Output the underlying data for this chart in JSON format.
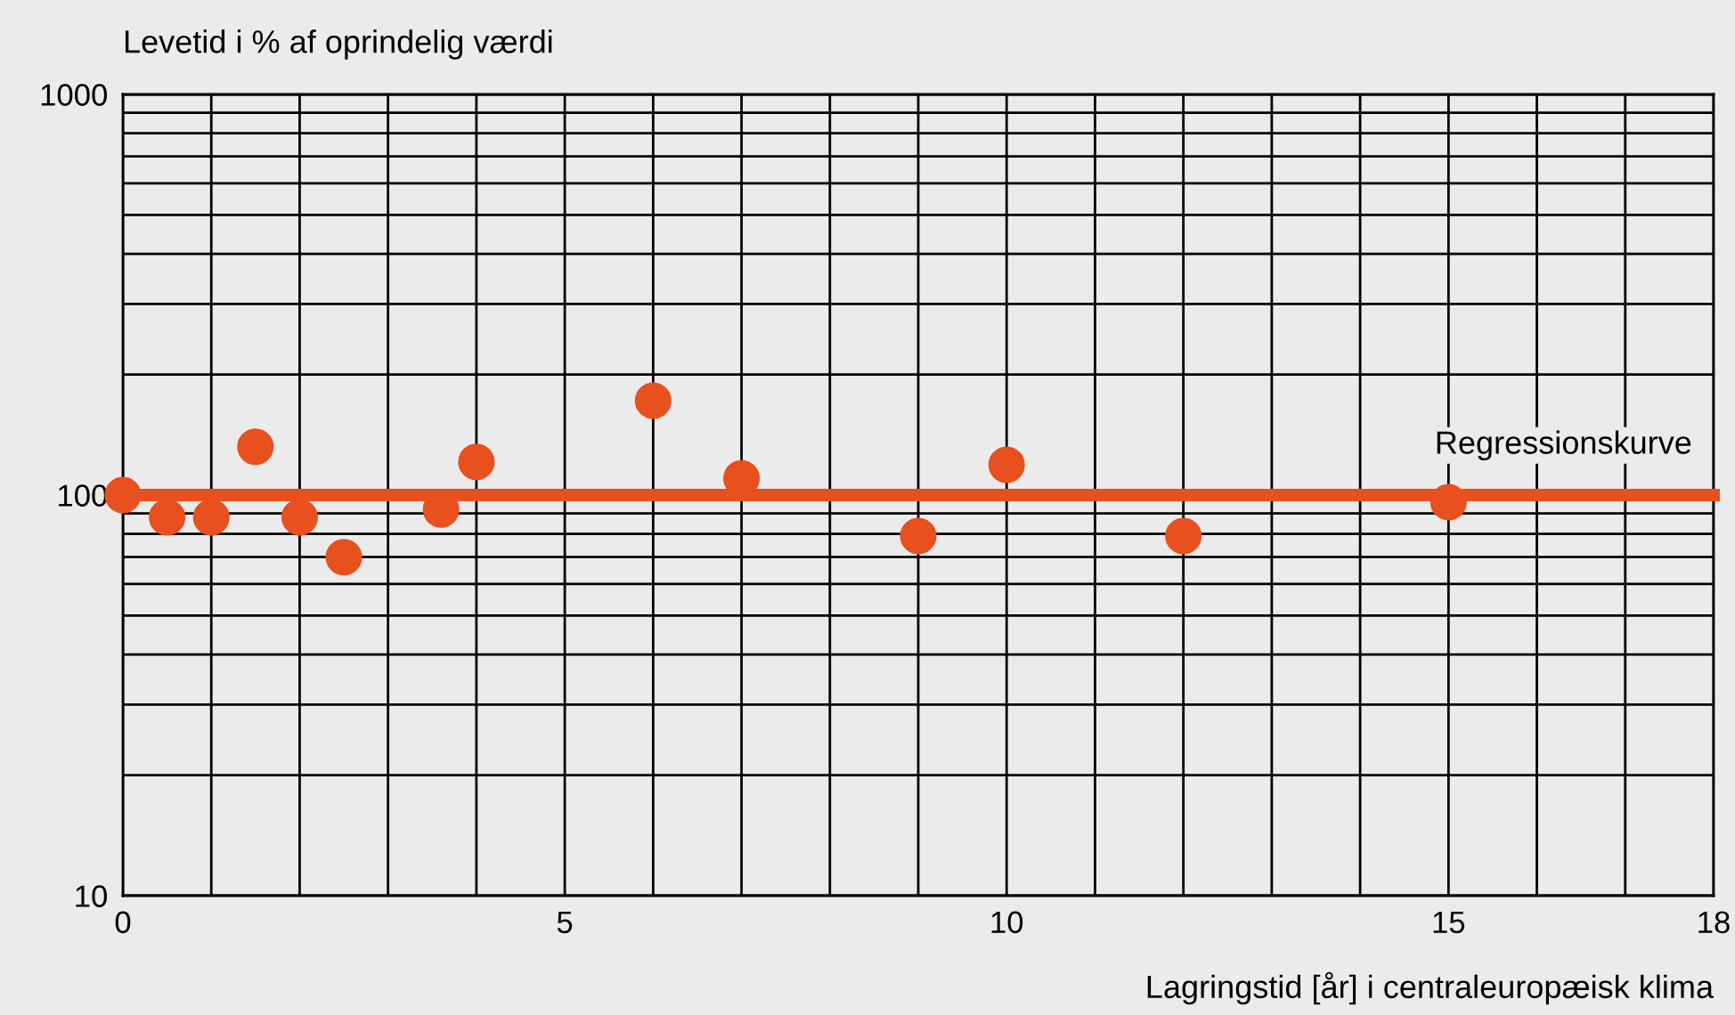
{
  "chart_data": {
    "type": "scatter",
    "ylabel": "Levetid i % af oprindelig værdi",
    "xlabel": "Lagringstid [år] i centraleuropæisk klima",
    "log": "y",
    "xlim": [
      0,
      18
    ],
    "ylim": [
      10,
      1000
    ],
    "xticks": [
      0,
      5,
      10,
      15,
      18,
      {
        "value": 1,
        "label": null
      },
      {
        "value": 2,
        "label": null
      },
      {
        "value": 3,
        "label": null
      },
      {
        "value": 4,
        "label": null
      },
      {
        "value": 6,
        "label": null
      },
      {
        "value": 7,
        "label": null
      },
      {
        "value": 8,
        "label": null
      },
      {
        "value": 9,
        "label": null
      },
      {
        "value": 11,
        "label": null
      },
      {
        "value": 12,
        "label": null
      },
      {
        "value": 13,
        "label": null
      },
      {
        "value": 14,
        "label": null
      },
      {
        "value": 16,
        "label": null
      },
      {
        "value": 17,
        "label": null
      }
    ],
    "yticks": [
      10,
      100,
      1000,
      {
        "value": 20,
        "label": null
      },
      {
        "value": 30,
        "label": null
      },
      {
        "value": 40,
        "label": null
      },
      {
        "value": 50,
        "label": null
      },
      {
        "value": 60,
        "label": null
      },
      {
        "value": 70,
        "label": null
      },
      {
        "value": 80,
        "label": null
      },
      {
        "value": 90,
        "label": null
      },
      {
        "value": 200,
        "label": null
      },
      {
        "value": 300,
        "label": null
      },
      {
        "value": 400,
        "label": null
      },
      {
        "value": 500,
        "label": null
      },
      {
        "value": 600,
        "label": null
      },
      {
        "value": 700,
        "label": null
      },
      {
        "value": 800,
        "label": null
      },
      {
        "value": 900,
        "label": null
      }
    ],
    "grid": true,
    "marker": "circle",
    "series": [
      {
        "type": "line",
        "marker": "none",
        "color": "#e8501e",
        "x": [
          0,
          18
        ],
        "values": [
          100,
          100
        ]
      },
      {
        "color": "#e8501e",
        "x": [
          0,
          0.5,
          1.0,
          1.5,
          2.0,
          2.5,
          3.6,
          4.0,
          6.0,
          7.0,
          9.0,
          10.0,
          12.0,
          15.0
        ],
        "values": [
          100,
          88,
          88,
          132,
          88,
          70,
          92,
          121,
          172,
          110,
          79,
          119,
          79,
          96
        ]
      }
    ],
    "annotations": [
      {
        "text": "Regressionskurve",
        "x": 16.3,
        "y": 100
      }
    ]
  }
}
